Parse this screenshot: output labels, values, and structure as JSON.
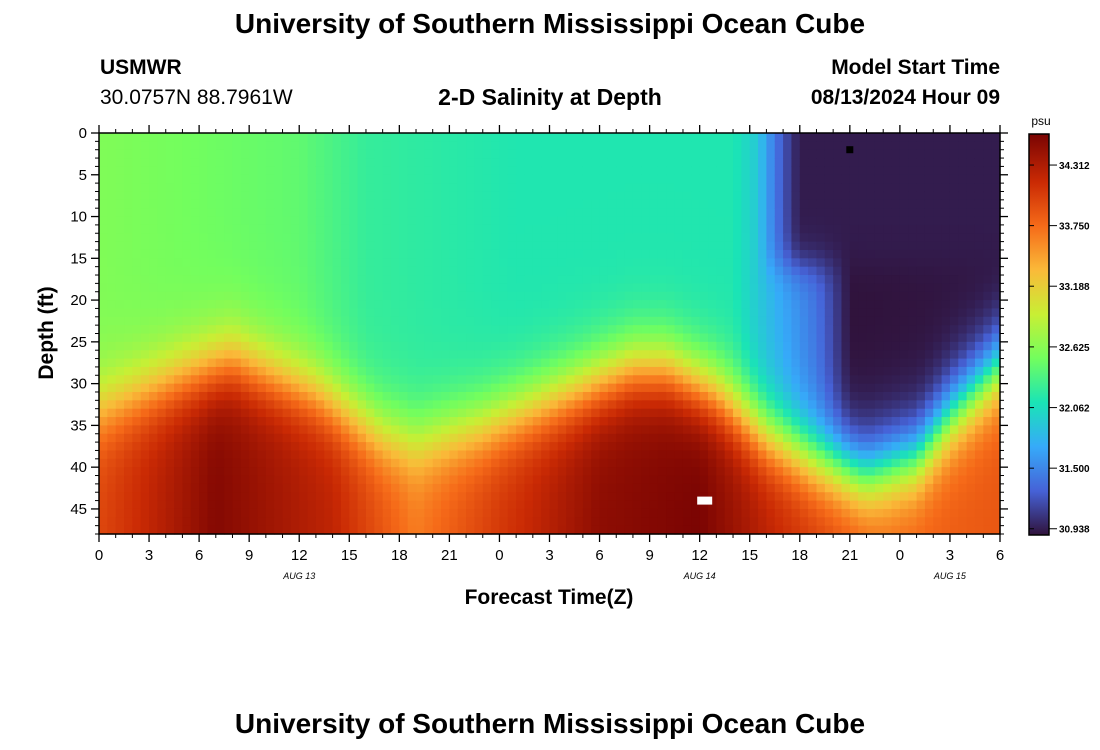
{
  "header": {
    "title": "University of Southern Mississippi Ocean Cube",
    "station": "USMWR",
    "coords": "30.0757N  88.7961W",
    "subtitle": "2-D Salinity at Depth",
    "start_label": "Model Start Time",
    "start_value": "08/13/2024 Hour 09"
  },
  "footer": {
    "title": "University of Southern Mississippi Ocean Cube"
  },
  "colors": {
    "ramp": [
      "#30123b",
      "#4662d7",
      "#36aaf9",
      "#1ae4b6",
      "#72fe5e",
      "#c8ef34",
      "#faba39",
      "#f66b19",
      "#ca2a04",
      "#7a0403"
    ]
  },
  "chart_data": {
    "type": "heatmap",
    "ylabel": "Depth (ft)",
    "xlabel": "Forecast Time(Z)",
    "x_ticks": [
      "0",
      "3",
      "6",
      "9",
      "12",
      "15",
      "18",
      "21",
      "0",
      "3",
      "6",
      "9",
      "12",
      "15",
      "18",
      "21",
      "0",
      "3",
      "6"
    ],
    "day_labels": [
      {
        "text": "AUG 13",
        "x_hour": 12
      },
      {
        "text": "AUG 14",
        "x_hour": 36
      },
      {
        "text": "AUG 15",
        "x_hour": 51
      }
    ],
    "x_range_hours": [
      0,
      54
    ],
    "y_ticks": [
      0,
      5,
      10,
      15,
      20,
      25,
      30,
      35,
      40,
      45
    ],
    "ylim": [
      0,
      48
    ],
    "colorbar": {
      "unit": "psu",
      "ticks": [
        "34.312",
        "33.750",
        "33.188",
        "32.625",
        "32.062",
        "31.500",
        "30.938"
      ],
      "range": [
        30.88,
        34.6
      ]
    },
    "markers": [
      {
        "name": "black-marker",
        "x_hour": 45,
        "depth": 2,
        "color": "#000000"
      },
      {
        "name": "white-marker",
        "x_hour": 36.3,
        "depth": 44,
        "color": "#ffffff"
      }
    ],
    "approx_field": {
      "surface_salinity": {
        "hours": [
          0,
          12,
          16,
          25,
          30,
          38,
          43,
          45,
          54
        ],
        "psu": [
          32.6,
          32.45,
          32.25,
          32.15,
          32.15,
          32.15,
          31.4,
          30.88,
          30.9
        ]
      },
      "halocline_depth_ft": {
        "hours": [
          0,
          5,
          8,
          13,
          17,
          19,
          23,
          27,
          32,
          34,
          37,
          40,
          43,
          46,
          49,
          51,
          54
        ],
        "ft": [
          33,
          29,
          27,
          31,
          36,
          37,
          35,
          32,
          28,
          28,
          31,
          36,
          39,
          41,
          39,
          34,
          28
        ]
      },
      "bottom_salinity": {
        "hours": [
          0,
          7,
          14,
          19,
          24,
          30,
          36,
          41,
          47,
          54
        ],
        "psu": [
          34.0,
          34.55,
          34.25,
          33.7,
          34.1,
          34.5,
          34.6,
          34.2,
          33.8,
          33.9
        ]
      },
      "fresh_cap": {
        "start_hour": 39.5,
        "depth_ft": 16,
        "psu": 30.93
      }
    }
  }
}
